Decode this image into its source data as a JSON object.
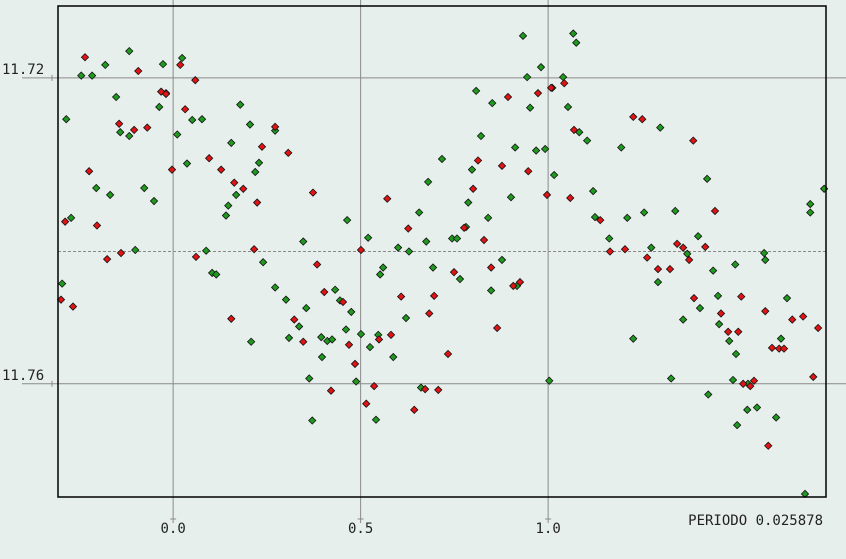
{
  "chart_data": {
    "type": "scatter",
    "annotation": "PERIODO 0.025878",
    "xlim": [
      -0.307,
      1.741
    ],
    "ylim": [
      11.7748,
      11.7106
    ],
    "xticks": [
      {
        "value": 0,
        "label": "0.0"
      },
      0.5,
      {
        "value": 1,
        "label": "1.0"
      }
    ],
    "yticks": [
      11.72,
      11.76
    ],
    "reference_line": 11.7427,
    "grid": true,
    "series": [
      {
        "color": "#1f9a1f",
        "x": [
          -0.296,
          -0.285,
          -0.272,
          -0.245,
          -0.216,
          -0.205,
          -0.181,
          -0.168,
          -0.152,
          -0.141,
          -0.117,
          -0.117,
          -0.101,
          -0.077,
          -0.051,
          -0.037,
          -0.027,
          -0.019,
          0.011,
          0.024,
          0.037,
          0.051,
          0.077,
          0.088,
          0.104,
          0.115,
          0.141,
          0.147,
          0.155,
          0.168,
          0.179,
          0.205,
          0.208,
          0.219,
          0.229,
          0.24,
          0.272,
          0.272,
          0.301,
          0.309,
          0.336,
          0.347,
          0.355,
          0.363,
          0.371,
          0.395,
          0.397,
          0.411,
          0.424,
          0.432,
          0.445,
          0.461,
          0.464,
          0.475,
          0.488,
          0.501,
          0.52,
          0.525,
          0.541,
          0.547,
          0.552,
          0.56,
          0.587,
          0.6,
          0.621,
          0.629,
          0.656,
          0.661,
          0.675,
          0.68,
          0.693,
          0.717,
          0.744,
          0.757,
          0.765,
          0.781,
          0.787,
          0.797,
          0.808,
          0.821,
          0.84,
          0.848,
          0.851,
          0.877,
          0.901,
          0.912,
          0.917,
          0.933,
          0.944,
          0.952,
          0.968,
          0.981,
          0.992,
          1.003,
          1.011,
          1.016,
          1.04,
          1.053,
          1.067,
          1.075,
          1.083,
          1.104,
          1.12,
          1.125,
          1.163,
          1.195,
          1.211,
          1.227,
          1.256,
          1.275,
          1.293,
          1.299,
          1.328,
          1.339,
          1.36,
          1.371,
          1.4,
          1.405,
          1.424,
          1.427,
          1.44,
          1.453,
          1.456,
          1.483,
          1.493,
          1.499,
          1.504,
          1.531,
          1.533,
          1.557,
          1.576,
          1.579,
          1.608,
          1.621,
          1.637,
          1.685,
          1.699,
          1.699,
          1.736,
          1.501
        ],
        "values": [
          11.7469,
          11.7254,
          11.7383,
          11.7197,
          11.7197,
          11.7344,
          11.7183,
          11.7353,
          11.7225,
          11.7271,
          11.7165,
          11.7276,
          11.7425,
          11.7344,
          11.7361,
          11.7238,
          11.7182,
          11.722,
          11.7274,
          11.7174,
          11.7312,
          11.7255,
          11.7254,
          11.7426,
          11.7455,
          11.7457,
          11.738,
          11.7367,
          11.7285,
          11.7353,
          11.7235,
          11.7261,
          11.7545,
          11.7323,
          11.7311,
          11.7441,
          11.7474,
          11.7269,
          11.749,
          11.754,
          11.7525,
          11.7414,
          11.7501,
          11.7593,
          11.7648,
          11.7539,
          11.7565,
          11.7544,
          11.7542,
          11.7477,
          11.7491,
          11.7529,
          11.7386,
          11.7506,
          11.7597,
          11.7535,
          11.7409,
          11.7552,
          11.7647,
          11.7536,
          11.7457,
          11.7448,
          11.7565,
          11.7422,
          11.7514,
          11.7427,
          11.7376,
          11.7605,
          11.7414,
          11.7336,
          11.7448,
          11.7306,
          11.741,
          11.741,
          11.7463,
          11.7395,
          11.7363,
          11.732,
          11.7217,
          11.7276,
          11.7383,
          11.7478,
          11.7233,
          11.7438,
          11.7356,
          11.7291,
          11.7472,
          11.7145,
          11.7199,
          11.7239,
          11.7295,
          11.7186,
          11.7293,
          11.7596,
          11.7213,
          11.7327,
          11.7199,
          11.7238,
          11.7142,
          11.7154,
          11.7271,
          11.7282,
          11.7348,
          11.7382,
          11.741,
          11.7291,
          11.7383,
          11.7541,
          11.7376,
          11.7422,
          11.7467,
          11.7265,
          11.7593,
          11.7374,
          11.7516,
          11.743,
          11.7407,
          11.7501,
          11.7332,
          11.7614,
          11.7452,
          11.7485,
          11.7522,
          11.7544,
          11.7595,
          11.7444,
          11.7654,
          11.7634,
          11.76,
          11.7631,
          11.7429,
          11.7438,
          11.7644,
          11.7541,
          11.7488,
          11.7744,
          11.7376,
          11.7365,
          11.7345,
          11.7561
        ]
      },
      {
        "color": "#e01414",
        "x": [
          -0.299,
          -0.288,
          -0.267,
          -0.235,
          -0.224,
          -0.203,
          -0.176,
          -0.144,
          -0.139,
          -0.104,
          -0.093,
          -0.069,
          -0.032,
          -0.019,
          -0.003,
          0.019,
          0.032,
          0.059,
          0.061,
          0.096,
          0.128,
          0.155,
          0.163,
          0.187,
          0.216,
          0.224,
          0.237,
          0.272,
          0.307,
          0.323,
          0.347,
          0.373,
          0.384,
          0.403,
          0.421,
          0.453,
          0.469,
          0.485,
          0.501,
          0.515,
          0.536,
          0.549,
          0.571,
          0.581,
          0.608,
          0.627,
          0.643,
          0.672,
          0.683,
          0.696,
          0.707,
          0.733,
          0.749,
          0.776,
          0.8,
          0.813,
          0.829,
          0.848,
          0.864,
          0.877,
          0.893,
          0.907,
          0.925,
          0.947,
          0.973,
          0.997,
          1.008,
          1.043,
          1.059,
          1.069,
          1.139,
          1.165,
          1.205,
          1.227,
          1.251,
          1.264,
          1.293,
          1.325,
          1.344,
          1.36,
          1.376,
          1.387,
          1.389,
          1.419,
          1.445,
          1.461,
          1.48,
          1.507,
          1.515,
          1.52,
          1.539,
          1.549,
          1.579,
          1.587,
          1.597,
          1.616,
          1.629,
          1.651,
          1.68,
          1.707,
          1.72
        ],
        "values": [
          11.749,
          11.7388,
          11.7499,
          11.7173,
          11.7322,
          11.7393,
          11.7437,
          11.726,
          11.7429,
          11.7268,
          11.7191,
          11.7265,
          11.7218,
          11.7221,
          11.732,
          11.7183,
          11.7241,
          11.7203,
          11.7434,
          11.7305,
          11.732,
          11.7515,
          11.7337,
          11.7345,
          11.7424,
          11.7363,
          11.729,
          11.7264,
          11.7298,
          11.7516,
          11.7545,
          11.735,
          11.7444,
          11.748,
          11.7609,
          11.7493,
          11.7549,
          11.7574,
          11.7425,
          11.7626,
          11.7603,
          11.7542,
          11.7358,
          11.7536,
          11.7486,
          11.7397,
          11.7634,
          11.7607,
          11.7508,
          11.7485,
          11.7608,
          11.7561,
          11.7454,
          11.7396,
          11.7345,
          11.7308,
          11.7412,
          11.7448,
          11.7527,
          11.7315,
          11.7225,
          11.7472,
          11.7467,
          11.7322,
          11.722,
          11.7353,
          11.7213,
          11.7207,
          11.7357,
          11.7268,
          11.7386,
          11.7427,
          11.7424,
          11.7251,
          11.7254,
          11.7435,
          11.745,
          11.745,
          11.7417,
          11.7422,
          11.7438,
          11.7282,
          11.7488,
          11.7421,
          11.7374,
          11.7508,
          11.7532,
          11.7532,
          11.7486,
          11.76,
          11.7603,
          11.7596,
          11.7505,
          11.7681,
          11.7553,
          11.7554,
          11.7554,
          11.7516,
          11.7512,
          11.7591,
          11.7527
        ]
      }
    ]
  }
}
